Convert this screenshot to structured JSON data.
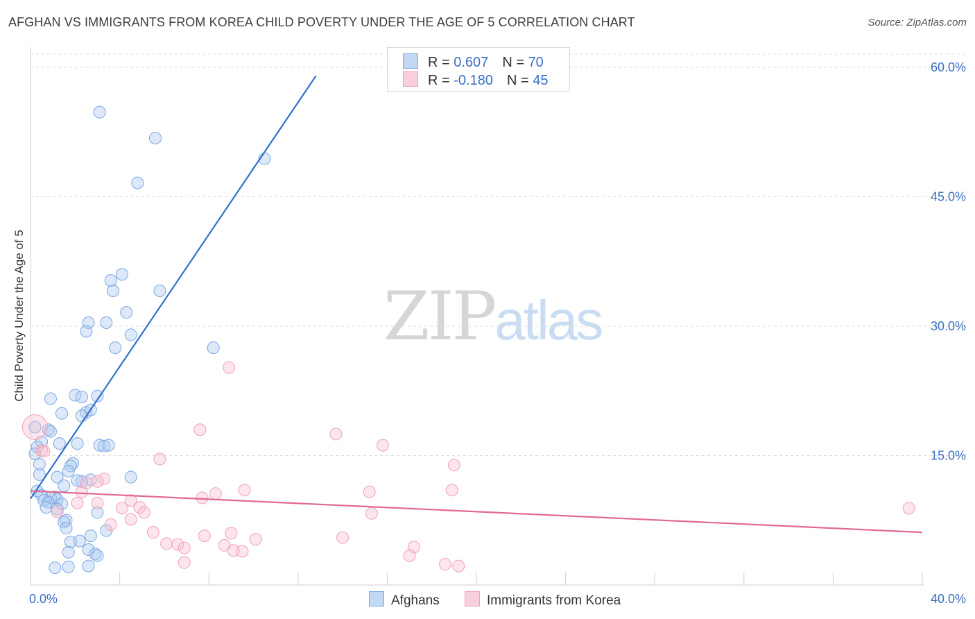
{
  "title": "AFGHAN VS IMMIGRANTS FROM KOREA CHILD POVERTY UNDER THE AGE OF 5 CORRELATION CHART",
  "source": "Source: ZipAtlas.com",
  "watermark": {
    "zip": "ZIP",
    "atlas": "atlas"
  },
  "legend": {
    "rows": [
      {
        "r_label": "R = ",
        "r_value": "0.607",
        "n_label": "N = ",
        "n_value": "70"
      },
      {
        "r_label": "R = ",
        "r_value": "-0.180",
        "n_label": "N = ",
        "n_value": "45"
      }
    ]
  },
  "bottom_legend": {
    "afghans": "Afghans",
    "korea": "Immigrants from Korea"
  },
  "chart_data": {
    "type": "scatter",
    "title": "AFGHAN VS IMMIGRANTS FROM KOREA CHILD POVERTY UNDER THE AGE OF 5 CORRELATION CHART",
    "xlabel": "",
    "ylabel": "Child Poverty Under the Age of 5",
    "xlim": [
      0,
      40
    ],
    "ylim": [
      0,
      60
    ],
    "x_tick_labels": [
      "0.0%",
      "40.0%"
    ],
    "y_ticks": [
      15,
      30,
      45,
      60
    ],
    "y_tick_labels": [
      "15.0%",
      "30.0%",
      "45.0%",
      "60.0%"
    ],
    "grid": true,
    "legend_position": "top-center",
    "colors": {
      "afghans": "#7aa7e3",
      "afghans_line": "#2e70c9",
      "korea": "#f0a0b8",
      "korea_line": "#e3688f",
      "tick_text": "#3a6fc4"
    },
    "series": [
      {
        "name": "Afghans",
        "color": "#7aa7e3",
        "trend": {
          "x": [
            0,
            12.8
          ],
          "y": [
            10,
            59
          ]
        },
        "points": [
          [
            3.1,
            54.8
          ],
          [
            5.6,
            51.8
          ],
          [
            4.8,
            46.6
          ],
          [
            10.5,
            49.4
          ],
          [
            4.1,
            36.0
          ],
          [
            5.8,
            34.1
          ],
          [
            3.7,
            34.1
          ],
          [
            3.6,
            35.3
          ],
          [
            4.3,
            31.6
          ],
          [
            3.4,
            30.4
          ],
          [
            2.6,
            30.4
          ],
          [
            2.5,
            29.4
          ],
          [
            4.5,
            29.0
          ],
          [
            3.8,
            27.5
          ],
          [
            8.2,
            27.5
          ],
          [
            2.0,
            22.0
          ],
          [
            3.0,
            21.9
          ],
          [
            0.9,
            21.6
          ],
          [
            2.3,
            21.8
          ],
          [
            2.5,
            20.0
          ],
          [
            2.7,
            20.3
          ],
          [
            1.4,
            19.9
          ],
          [
            2.3,
            19.6
          ],
          [
            0.2,
            18.3
          ],
          [
            0.8,
            18.0
          ],
          [
            0.9,
            17.8
          ],
          [
            0.5,
            16.6
          ],
          [
            1.3,
            16.4
          ],
          [
            2.1,
            16.4
          ],
          [
            3.1,
            16.2
          ],
          [
            3.3,
            16.1
          ],
          [
            3.5,
            16.2
          ],
          [
            0.3,
            16.0
          ],
          [
            0.2,
            15.2
          ],
          [
            0.4,
            14.0
          ],
          [
            1.9,
            14.1
          ],
          [
            1.8,
            13.8
          ],
          [
            1.7,
            13.2
          ],
          [
            0.4,
            12.8
          ],
          [
            1.2,
            12.5
          ],
          [
            4.5,
            12.5
          ],
          [
            2.7,
            12.2
          ],
          [
            1.5,
            11.5
          ],
          [
            2.3,
            12.0
          ],
          [
            2.1,
            12.1
          ],
          [
            0.3,
            10.9
          ],
          [
            0.5,
            10.4
          ],
          [
            1.1,
            10.2
          ],
          [
            0.9,
            10.1
          ],
          [
            1.2,
            9.9
          ],
          [
            0.6,
            9.8
          ],
          [
            0.8,
            9.6
          ],
          [
            1.4,
            9.4
          ],
          [
            0.7,
            9.0
          ],
          [
            1.2,
            8.8
          ],
          [
            3.0,
            8.4
          ],
          [
            1.6,
            7.5
          ],
          [
            1.5,
            7.3
          ],
          [
            1.6,
            6.6
          ],
          [
            3.4,
            6.3
          ],
          [
            2.7,
            5.7
          ],
          [
            2.2,
            5.1
          ],
          [
            1.8,
            5.0
          ],
          [
            2.6,
            4.1
          ],
          [
            1.7,
            3.8
          ],
          [
            2.9,
            3.6
          ],
          [
            3.0,
            3.4
          ],
          [
            2.6,
            2.2
          ],
          [
            1.7,
            2.1
          ],
          [
            1.1,
            2.0
          ]
        ]
      },
      {
        "name": "Immigrants from Korea",
        "color": "#f0a0b8",
        "trend": {
          "x": [
            0,
            40
          ],
          "y": [
            10.9,
            6.1
          ]
        },
        "points": [
          [
            0.2,
            18.3
          ],
          [
            0.5,
            15.6
          ],
          [
            8.9,
            25.2
          ],
          [
            7.6,
            18.0
          ],
          [
            13.7,
            17.5
          ],
          [
            15.8,
            16.2
          ],
          [
            5.8,
            14.6
          ],
          [
            19.0,
            13.9
          ],
          [
            3.3,
            12.3
          ],
          [
            2.5,
            11.8
          ],
          [
            2.3,
            10.8
          ],
          [
            8.3,
            10.6
          ],
          [
            9.6,
            11.0
          ],
          [
            15.2,
            10.8
          ],
          [
            18.9,
            11.0
          ],
          [
            7.7,
            10.1
          ],
          [
            4.5,
            9.8
          ],
          [
            4.9,
            9.0
          ],
          [
            2.1,
            9.5
          ],
          [
            3.0,
            9.5
          ],
          [
            4.1,
            8.9
          ],
          [
            5.1,
            8.4
          ],
          [
            1.2,
            8.5
          ],
          [
            4.5,
            7.6
          ],
          [
            3.6,
            7.0
          ],
          [
            15.3,
            8.3
          ],
          [
            39.4,
            8.9
          ],
          [
            5.5,
            6.1
          ],
          [
            7.8,
            5.7
          ],
          [
            10.1,
            5.3
          ],
          [
            6.1,
            4.8
          ],
          [
            6.6,
            4.7
          ],
          [
            8.7,
            4.6
          ],
          [
            14.0,
            5.5
          ],
          [
            9.5,
            3.9
          ],
          [
            17.2,
            4.4
          ],
          [
            6.9,
            4.3
          ],
          [
            9.1,
            4.0
          ],
          [
            17.0,
            3.4
          ],
          [
            6.9,
            2.6
          ],
          [
            18.6,
            2.4
          ],
          [
            19.2,
            2.2
          ],
          [
            0.6,
            15.5
          ],
          [
            9.0,
            6.0
          ],
          [
            3.0,
            12.0
          ]
        ]
      }
    ]
  }
}
